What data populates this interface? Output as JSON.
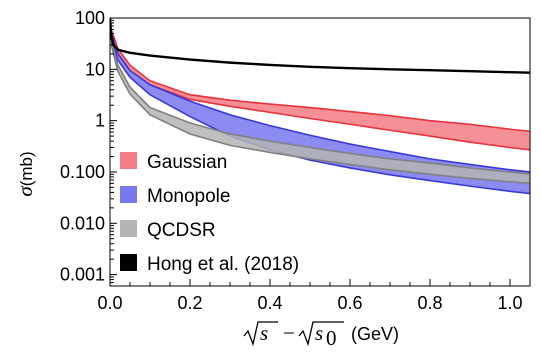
{
  "chart_data": {
    "type": "line",
    "xlabel": "√s − √s0 (GeV)",
    "ylabel": "σ (mb)",
    "xlim": [
      0,
      1.05
    ],
    "ylim": [
      0.0006,
      100
    ],
    "yscale": "log",
    "grid": false,
    "legend_placement": "bottom-left",
    "x_ticks": [
      {
        "value": 0.0,
        "label": "0.0"
      },
      {
        "value": 0.2,
        "label": "0.2"
      },
      {
        "value": 0.4,
        "label": "0.4"
      },
      {
        "value": 0.6,
        "label": "0.6"
      },
      {
        "value": 0.8,
        "label": "0.8"
      },
      {
        "value": 1.0,
        "label": "1.0"
      }
    ],
    "y_ticks": [
      {
        "value": 100,
        "label": "100"
      },
      {
        "value": 10,
        "label": "10"
      },
      {
        "value": 1,
        "label": "1"
      },
      {
        "value": 0.1,
        "label": "0.100"
      },
      {
        "value": 0.01,
        "label": "0.010"
      },
      {
        "value": 0.001,
        "label": "0.001"
      }
    ],
    "bands": [
      {
        "name": "Gaussian",
        "fill": "#f47d85",
        "stroke": "#e8323c",
        "x": [
          0.003,
          0.02,
          0.05,
          0.1,
          0.2,
          0.3,
          0.4,
          0.5,
          0.6,
          0.7,
          0.8,
          0.9,
          1.0,
          1.05
        ],
        "upper": [
          60,
          25,
          12,
          6,
          3.2,
          2.5,
          2.1,
          1.8,
          1.5,
          1.25,
          1.0,
          0.85,
          0.68,
          0.62
        ],
        "lower": [
          50,
          20,
          9.5,
          5.0,
          2.6,
          1.9,
          1.45,
          1.1,
          0.85,
          0.65,
          0.5,
          0.38,
          0.3,
          0.27
        ]
      },
      {
        "name": "Monopole",
        "fill": "#7777ee",
        "stroke": "#3a3ad9",
        "x": [
          0.003,
          0.02,
          0.05,
          0.1,
          0.2,
          0.3,
          0.4,
          0.5,
          0.6,
          0.7,
          0.8,
          0.9,
          1.0,
          1.05
        ],
        "upper": [
          50,
          20,
          9.5,
          5.0,
          2.4,
          1.3,
          0.8,
          0.52,
          0.35,
          0.25,
          0.18,
          0.14,
          0.11,
          0.1
        ],
        "lower": [
          40,
          15,
          7.0,
          3.2,
          1.2,
          0.5,
          0.27,
          0.17,
          0.12,
          0.088,
          0.068,
          0.053,
          0.042,
          0.038
        ]
      },
      {
        "name": "QCDSR",
        "fill": "#b4b4b4",
        "stroke": "#808080",
        "x": [
          0.003,
          0.02,
          0.05,
          0.1,
          0.2,
          0.3,
          0.4,
          0.5,
          0.6,
          0.7,
          0.8,
          0.9,
          1.0,
          1.05
        ],
        "upper": [
          35,
          12,
          4.5,
          1.8,
          0.9,
          0.55,
          0.4,
          0.3,
          0.23,
          0.18,
          0.15,
          0.12,
          0.1,
          0.092
        ],
        "lower": [
          30,
          9,
          3.3,
          1.3,
          0.55,
          0.33,
          0.24,
          0.18,
          0.14,
          0.11,
          0.09,
          0.075,
          0.064,
          0.06
        ]
      }
    ],
    "lines": [
      {
        "name": "Hong et al. (2018)",
        "color": "#000000",
        "x": [
          0.0,
          0.003,
          0.008,
          0.02,
          0.05,
          0.1,
          0.2,
          0.3,
          0.4,
          0.5,
          0.6,
          0.7,
          0.8,
          0.9,
          1.0,
          1.05
        ],
        "y": [
          100,
          45,
          30,
          24,
          21,
          18.5,
          15.5,
          13.5,
          12.2,
          11.2,
          10.5,
          10.0,
          9.6,
          9.2,
          8.8,
          8.6
        ]
      }
    ],
    "legend": [
      {
        "label": "Gaussian",
        "color": "#f47d85"
      },
      {
        "label": "Monopole",
        "color": "#7777ee"
      },
      {
        "label": "QCDSR",
        "color": "#b4b4b4"
      },
      {
        "label": "Hong et al. (2018)",
        "color": "#000000"
      }
    ]
  }
}
